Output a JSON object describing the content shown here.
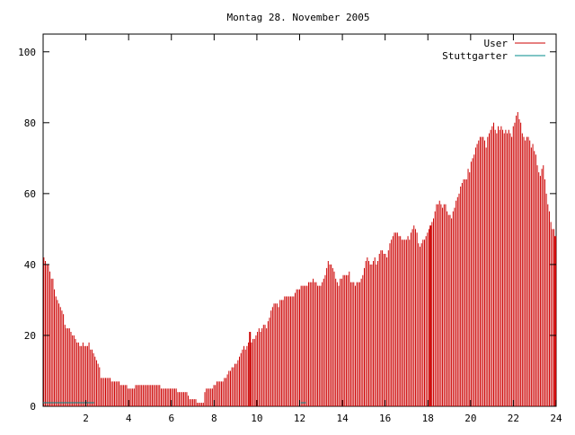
{
  "chart_data": {
    "type": "bar",
    "title": "Montag 28. November 2005",
    "xlabel": "",
    "ylabel": "",
    "xlim": [
      0,
      24
    ],
    "ylim": [
      0,
      105
    ],
    "x_ticks": [
      "2",
      "4",
      "6",
      "8",
      "10",
      "12",
      "14",
      "16",
      "18",
      "20",
      "22",
      "24"
    ],
    "y_ticks": [
      "0",
      "20",
      "40",
      "60",
      "80",
      "100"
    ],
    "legend_position": "top-right",
    "bar_interval_hours": 0.0833,
    "series": [
      {
        "name": "User",
        "color": "#cc0000",
        "values": [
          42,
          41,
          40,
          40,
          38,
          36,
          36,
          33,
          31,
          30,
          29,
          28,
          27,
          26,
          23,
          22,
          22,
          22,
          21,
          20,
          20,
          19,
          18,
          18,
          17,
          17,
          18,
          17,
          17,
          17,
          18,
          16,
          16,
          15,
          14,
          13,
          12,
          11,
          8,
          8,
          8,
          8,
          8,
          8,
          8,
          7,
          7,
          7,
          7,
          7,
          7,
          6,
          6,
          6,
          6,
          6,
          5,
          5,
          5,
          5,
          5,
          6,
          6,
          6,
          6,
          6,
          6,
          6,
          6,
          6,
          6,
          6,
          6,
          6,
          6,
          6,
          6,
          6,
          5,
          5,
          5,
          5,
          5,
          5,
          5,
          5,
          5,
          5,
          5,
          4,
          4,
          4,
          4,
          4,
          4,
          4,
          3,
          2,
          2,
          2,
          2,
          2,
          1,
          1,
          1,
          1,
          1,
          4,
          5,
          5,
          5,
          5,
          5,
          6,
          6,
          7,
          7,
          7,
          7,
          7,
          8,
          8,
          9,
          10,
          10,
          11,
          11,
          12,
          12,
          13,
          14,
          15,
          16,
          17,
          16,
          17,
          18,
          21,
          18,
          19,
          19,
          20,
          21,
          22,
          21,
          22,
          23,
          23,
          22,
          24,
          25,
          27,
          28,
          29,
          29,
          29,
          28,
          30,
          30,
          30,
          31,
          31,
          31,
          31,
          31,
          31,
          31,
          32,
          33,
          33,
          33,
          34,
          34,
          34,
          34,
          34,
          35,
          35,
          35,
          36,
          35,
          35,
          34,
          34,
          34,
          35,
          36,
          37,
          39,
          41,
          40,
          40,
          39,
          38,
          36,
          35,
          34,
          36,
          36,
          37,
          37,
          37,
          37,
          38,
          35,
          35,
          35,
          34,
          35,
          35,
          35,
          36,
          37,
          39,
          41,
          42,
          41,
          40,
          40,
          41,
          42,
          40,
          41,
          43,
          44,
          44,
          43,
          43,
          42,
          44,
          46,
          47,
          48,
          49,
          49,
          49,
          48,
          48,
          47,
          47,
          47,
          47,
          48,
          47,
          49,
          50,
          51,
          50,
          49,
          46,
          45,
          46,
          47,
          47,
          48,
          49,
          50,
          51,
          52,
          53,
          55,
          57,
          57,
          58,
          57,
          56,
          57,
          57,
          55,
          54,
          54,
          53,
          55,
          56,
          58,
          59,
          60,
          62,
          63,
          64,
          64,
          64,
          67,
          66,
          69,
          70,
          71,
          73,
          74,
          75,
          76,
          76,
          76,
          75,
          73,
          76,
          77,
          78,
          79,
          80,
          78,
          77,
          79,
          78,
          79,
          78,
          77,
          78,
          77,
          78,
          77,
          76,
          79,
          80,
          82,
          83,
          81,
          80,
          77,
          76,
          75,
          76,
          76,
          75,
          73,
          74,
          72,
          71,
          68,
          66,
          65,
          67,
          68,
          64,
          60,
          57,
          55,
          52,
          50,
          50,
          48
        ],
        "highlight_indices": [
          137,
          257,
          340
        ]
      },
      {
        "name": "Stuttgarter",
        "color": "#008b8b",
        "values_note": "",
        "segments": [
          {
            "x_start": 0.0,
            "x_end": 2.4,
            "value": 1
          },
          {
            "x_start": 12.05,
            "x_end": 12.3,
            "value": 1
          }
        ]
      }
    ]
  }
}
